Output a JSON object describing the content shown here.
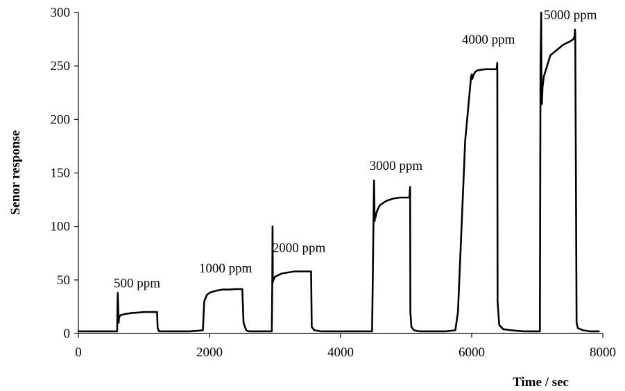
{
  "chart_data": {
    "type": "line",
    "xlabel": "Time / sec",
    "ylabel": "Senor response",
    "xlim": [
      0,
      8000
    ],
    "ylim": [
      0,
      300
    ],
    "x_ticks": [
      0,
      2000,
      4000,
      6000,
      8000
    ],
    "y_ticks": [
      0,
      50,
      100,
      150,
      200,
      250,
      300
    ],
    "x_tick_labels": [
      "0",
      "2000",
      "4000",
      "6000",
      "8000"
    ],
    "y_tick_labels": [
      "0",
      "50",
      "100",
      "150",
      "200",
      "250",
      "300"
    ],
    "grid": false,
    "series": [
      {
        "color": "#000000",
        "x": [
          0,
          590,
          600,
          615,
          620,
          640,
          700,
          800,
          900,
          1000,
          1100,
          1200,
          1210,
          1230,
          1260,
          1300,
          1500,
          1700,
          1900,
          1920,
          1960,
          2000,
          2100,
          2200,
          2300,
          2400,
          2500,
          2520,
          2560,
          2600,
          2700,
          2800,
          2950,
          2958,
          2962,
          2966,
          2975,
          3000,
          3100,
          3200,
          3300,
          3400,
          3500,
          3550,
          3560,
          3600,
          3700,
          3900,
          4100,
          4300,
          4480,
          4510,
          4520,
          4525,
          4530,
          4545,
          4560,
          4600,
          4700,
          4800,
          4900,
          5000,
          5050,
          5060,
          5065,
          5080,
          5120,
          5200,
          5400,
          5600,
          5750,
          5790,
          5900,
          5990,
          6000,
          6010,
          6030,
          6060,
          6100,
          6200,
          6300,
          6380,
          6390,
          6395,
          6420,
          6480,
          6600,
          6800,
          7000,
          7040,
          7050,
          7060,
          7065,
          7072,
          7080,
          7100,
          7150,
          7200,
          7300,
          7400,
          7500,
          7550,
          7570,
          7575,
          7580,
          7600,
          7620,
          7700,
          7800,
          7940
        ],
        "y": [
          2,
          2,
          38,
          10,
          15,
          17,
          18,
          19,
          19.5,
          20,
          20,
          20,
          5,
          2,
          2,
          2,
          2,
          2,
          3,
          30,
          36,
          38,
          40,
          41,
          41,
          41.5,
          41.5,
          10,
          3,
          2,
          2,
          2,
          2,
          45,
          100,
          48,
          50,
          53,
          56,
          57,
          58,
          58,
          58,
          58,
          6,
          3,
          2,
          2,
          2,
          2,
          2,
          143,
          105,
          110,
          108,
          112,
          115,
          120,
          124,
          126,
          127,
          127,
          127,
          137,
          20,
          6,
          3,
          2,
          2,
          2,
          3,
          20,
          180,
          240,
          242,
          238,
          242,
          245,
          246,
          247,
          247,
          247,
          253,
          30,
          8,
          4,
          3,
          2,
          2,
          2,
          250,
          300,
          214,
          215,
          230,
          240,
          250,
          260,
          265,
          270,
          273,
          275,
          278,
          284,
          280,
          10,
          5,
          3,
          2,
          2
        ]
      }
    ],
    "annotations": [
      {
        "text": "500 ppm",
        "x": 540,
        "y": 43
      },
      {
        "text": "1000 ppm",
        "x": 1840,
        "y": 57
      },
      {
        "text": "2000 ppm",
        "x": 2960,
        "y": 76
      },
      {
        "text": "3000 ppm",
        "x": 4440,
        "y": 153
      },
      {
        "text": "4000 ppm",
        "x": 5850,
        "y": 271
      },
      {
        "text": "5000 ppm",
        "x": 7100,
        "y": 294
      }
    ]
  }
}
